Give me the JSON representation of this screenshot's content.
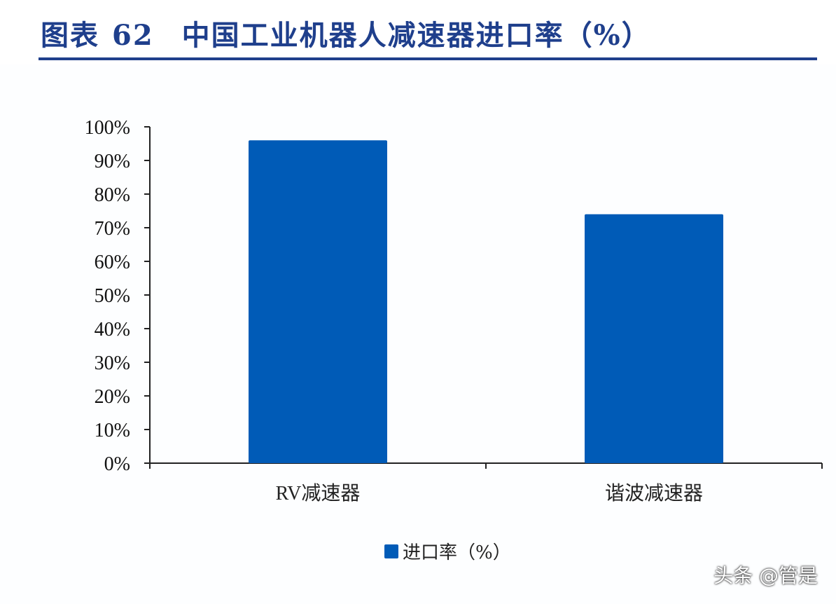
{
  "header": {
    "figure_label": "图表",
    "figure_number": "62",
    "title": "中国工业机器人减速器进口率（%）"
  },
  "chart_data": {
    "type": "bar",
    "categories": [
      "RV减速器",
      "谐波减速器"
    ],
    "series": [
      {
        "name": "进口率（%）",
        "values": [
          96,
          74
        ]
      }
    ],
    "ylim": [
      0,
      100
    ],
    "yticks": [
      "0%",
      "10%",
      "20%",
      "30%",
      "40%",
      "50%",
      "60%",
      "70%",
      "80%",
      "90%",
      "100%"
    ],
    "ytick_values": [
      0,
      10,
      20,
      30,
      40,
      50,
      60,
      70,
      80,
      90,
      100
    ],
    "bar_color": "#005bb7",
    "legend_position": "bottom",
    "grid": false
  },
  "watermark": "头条 @管是"
}
